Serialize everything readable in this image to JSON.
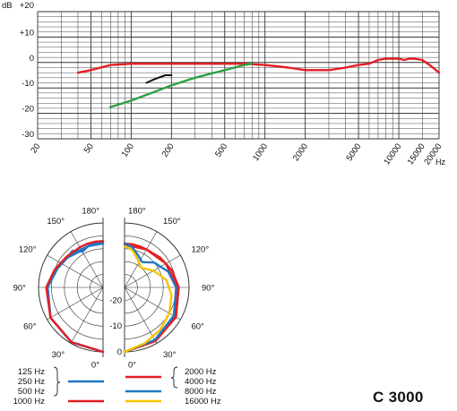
{
  "model_name": "C 3000",
  "chart_data": [
    {
      "type": "line",
      "xscale": "log",
      "xlim": [
        20,
        20000
      ],
      "ylim": [
        -30,
        20
      ],
      "ylabel": "dB",
      "xunit": "Hz",
      "x_ticks": [
        "20",
        "50",
        "100",
        "200",
        "500",
        "1000",
        "2000",
        "5000",
        "10000",
        "15000",
        "20000"
      ],
      "y_ticks": [
        "+20",
        "+10",
        "0",
        "-10",
        "-20",
        "-30"
      ],
      "grid": true,
      "series": [
        {
          "color": "#e31e24",
          "x": [
            40,
            50,
            70,
            100,
            200,
            500,
            700,
            1000,
            1500,
            2000,
            3000,
            4000,
            5000,
            6000,
            7000,
            8000,
            9000,
            10000,
            11000,
            12000,
            13000,
            15000,
            17000,
            20000
          ],
          "y": [
            -4,
            -3,
            -1,
            -0.5,
            -0.5,
            -0.5,
            -0.5,
            -1,
            -2,
            -3,
            -3,
            -2,
            -1,
            -0.5,
            1,
            1.5,
            1.5,
            1.5,
            1,
            1.5,
            1.5,
            1,
            -1,
            -4
          ]
        },
        {
          "color": "#2ea043",
          "x": [
            70,
            100,
            200,
            300,
            500,
            700,
            800
          ],
          "y": [
            -17.5,
            -15,
            -9,
            -6,
            -3,
            -1,
            -0.5
          ]
        },
        {
          "color": "#111111",
          "x": [
            130,
            150,
            180,
            200
          ],
          "y": [
            -8,
            -6.5,
            -5,
            -5
          ]
        }
      ]
    },
    {
      "type": "polar",
      "angle_ticks": [
        "180°",
        "150°",
        "120°",
        "90°",
        "60°",
        "30°",
        "0°"
      ],
      "radial_ticks": [
        "-20",
        "-10",
        "0"
      ],
      "left_series": [
        {
          "name": "125 Hz",
          "color": "#1f77c4",
          "angles": [
            0,
            30,
            60,
            90,
            110,
            130,
            140,
            150,
            160,
            170,
            180
          ],
          "values": [
            0,
            -0.5,
            -1.5,
            -3.5,
            -5.5,
            -7,
            -6.5,
            -9,
            -8,
            -7.5,
            -7.5
          ]
        },
        {
          "name": "250 Hz",
          "color": "#1f77c4",
          "angles": [
            0,
            30,
            60,
            90,
            110,
            130,
            150,
            160,
            170,
            180
          ],
          "values": [
            0,
            -0.5,
            -1.5,
            -3.5,
            -5.5,
            -7,
            -8.5,
            -8,
            -7.5,
            -7.5
          ]
        },
        {
          "name": "500 Hz",
          "color": "#1f77c4",
          "angles": [
            0,
            30,
            60,
            90,
            120,
            140,
            160,
            180
          ],
          "values": [
            0,
            -0.5,
            -1.5,
            -3.5,
            -6,
            -7.5,
            -8,
            -8
          ]
        },
        {
          "name": "1000 Hz",
          "color": "#e31e24",
          "angles": [
            0,
            30,
            60,
            90,
            110,
            130,
            150,
            160,
            170,
            180
          ],
          "values": [
            0,
            -0.5,
            -1.5,
            -3,
            -5,
            -6.5,
            -7,
            -7,
            -7,
            -7
          ]
        }
      ],
      "right_series": [
        {
          "name": "2000 Hz",
          "color": "#e31e24",
          "angles": [
            0,
            30,
            60,
            90,
            110,
            130,
            150,
            160,
            170,
            180
          ],
          "values": [
            0,
            -1,
            -2,
            -4,
            -5.5,
            -7,
            -8,
            -8,
            -8,
            -8
          ]
        },
        {
          "name": "4000 Hz",
          "color": "#e31e24",
          "angles": [
            0,
            30,
            60,
            90,
            120,
            150,
            180
          ],
          "values": [
            0,
            -1,
            -2.5,
            -4.5,
            -6.5,
            -8,
            -8.5
          ]
        },
        {
          "name": "8000 Hz",
          "color": "#1f77c4",
          "angles": [
            0,
            30,
            60,
            90,
            110,
            130,
            145,
            160,
            170,
            180
          ],
          "values": [
            0,
            -1.5,
            -3,
            -5,
            -7,
            -10,
            -13,
            -11,
            -9,
            -8
          ]
        },
        {
          "name": "16000 Hz",
          "color": "#f5c400",
          "angles": [
            0,
            20,
            40,
            60,
            80,
            100,
            120,
            140,
            155,
            165,
            170,
            180
          ],
          "values": [
            0,
            -2,
            -3.5,
            -5,
            -6.5,
            -8.5,
            -12,
            -15,
            -13,
            -11,
            -10,
            -9
          ]
        }
      ]
    }
  ]
}
